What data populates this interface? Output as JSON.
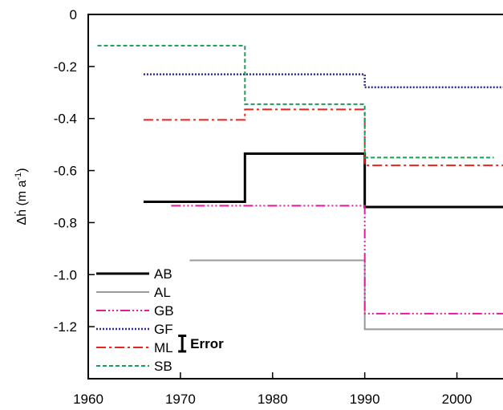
{
  "chart_data": {
    "type": "line",
    "step": true,
    "ylabel": "Δḣ (m a⁻¹)",
    "ylabel_parts": {
      "main": "Δḣ",
      "unit_open": " (m a",
      "unit_sup": "-1",
      "unit_close": ")"
    },
    "xlim": [
      1960,
      2005
    ],
    "ylim": [
      -1.4,
      0
    ],
    "xticks": [
      1960,
      1970,
      1980,
      1990,
      2000
    ],
    "xtick_labels": [
      "1960",
      "1970",
      "1980",
      "1990",
      "2000"
    ],
    "yticks": [
      0,
      -0.2,
      -0.4,
      -0.6,
      -0.8,
      -1.0,
      -1.2
    ],
    "ytick_labels": [
      "0",
      "-0.2",
      "-0.4",
      "-0.6",
      "-0.8",
      "-1.0",
      "-1.2"
    ],
    "grid": false,
    "legend_position": "bottom-left",
    "error_label": "Error",
    "error_bar": {
      "x": 1970.2,
      "center": -1.265,
      "half": 0.03
    },
    "series": [
      {
        "name": "AB",
        "color": "#000000",
        "dash": "",
        "width": 3,
        "segments": [
          {
            "x": [
              1966,
              1977
            ],
            "y": -0.72
          },
          {
            "x": [
              1977,
              1990
            ],
            "y": -0.535
          },
          {
            "x": [
              1990,
              2005
            ],
            "y": -0.74
          }
        ]
      },
      {
        "name": "AL",
        "color": "#999999",
        "dash": "",
        "width": 2,
        "segments": [
          {
            "x": [
              1971,
              1990
            ],
            "y": -0.945
          },
          {
            "x": [
              1990,
              2005
            ],
            "y": -1.21
          }
        ]
      },
      {
        "name": "GB",
        "color": "#e6199a",
        "dash": "12,3,2,3,2,3,2,3",
        "width": 2,
        "segments": [
          {
            "x": [
              1969,
              1990
            ],
            "y": -0.735
          },
          {
            "x": [
              1990,
              2005
            ],
            "y": -1.15
          }
        ]
      },
      {
        "name": "GF",
        "color": "#2a2a9a",
        "dash": "2,2",
        "width": 2.5,
        "segments": [
          {
            "x": [
              1966,
              1990
            ],
            "y": -0.23
          },
          {
            "x": [
              1990,
              2005
            ],
            "y": -0.28
          }
        ]
      },
      {
        "name": "ML",
        "color": "#e8251c",
        "dash": "12,4,3,4",
        "width": 2,
        "segments": [
          {
            "x": [
              1966,
              1977
            ],
            "y": -0.405
          },
          {
            "x": [
              1977,
              1990
            ],
            "y": -0.365
          },
          {
            "x": [
              1990,
              2005
            ],
            "y": -0.58
          }
        ]
      },
      {
        "name": "SB",
        "color": "#1e9a5a",
        "dash": "5,3",
        "width": 2,
        "segments": [
          {
            "x": [
              1961,
              1977
            ],
            "y": -0.12
          },
          {
            "x": [
              1977,
              1990
            ],
            "y": -0.345
          },
          {
            "x": [
              1990,
              2004
            ],
            "y": -0.55
          }
        ]
      }
    ]
  }
}
